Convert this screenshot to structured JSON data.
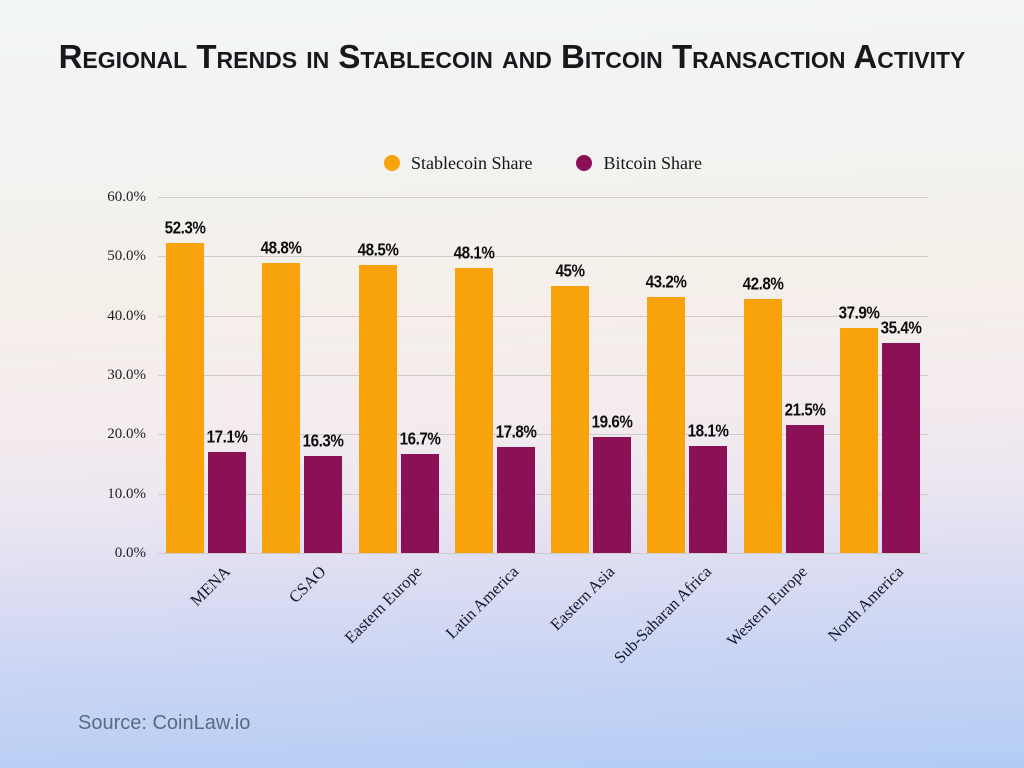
{
  "title": "Regional Trends in Stablecoin and Bitcoin Transaction Activity",
  "source_note": "Source: CoinLaw.io",
  "colors": {
    "stablecoin": "#f8a30b",
    "bitcoin": "#8c1056",
    "gridline": "#cfcbc8",
    "title_text": "#17171c",
    "source_text": "#5d6b80"
  },
  "legend": {
    "items": [
      {
        "label": "Stablecoin Share",
        "color": "#f8a30b"
      },
      {
        "label": "Bitcoin Share",
        "color": "#8c1056"
      }
    ]
  },
  "chart_data": {
    "type": "bar",
    "title": "Regional Trends in Stablecoin and Bitcoin Transaction Activity",
    "categories": [
      "MENA",
      "CSAO",
      "Eastern Europe",
      "Latin America",
      "Eastern Asia",
      "Sub-Saharan Africa",
      "Western Europe",
      "North America"
    ],
    "series": [
      {
        "name": "Stablecoin Share",
        "color": "#f8a30b",
        "values": [
          52.3,
          48.8,
          48.5,
          48.1,
          45,
          43.2,
          42.8,
          37.9
        ],
        "labels": [
          "52.3%",
          "48.8%",
          "48.5%",
          "48.1%",
          "45%",
          "43.2%",
          "42.8%",
          "37.9%"
        ]
      },
      {
        "name": "Bitcoin Share",
        "color": "#8c1056",
        "values": [
          17.1,
          16.3,
          16.7,
          17.8,
          19.6,
          18.1,
          21.5,
          35.4
        ],
        "labels": [
          "17.1%",
          "16.3%",
          "16.7%",
          "17.8%",
          "19.6%",
          "18.1%",
          "21.5%",
          "35.4%"
        ]
      }
    ],
    "xlabel": "",
    "ylabel": "",
    "ylim": [
      0,
      60
    ],
    "ytick_interval": 10,
    "ytick_labels": [
      "0.0%",
      "10.0%",
      "20.0%",
      "30.0%",
      "40.0%",
      "50.0%",
      "60.0%"
    ],
    "grid": true,
    "legend_position": "top-center",
    "bar_value_labels": true
  }
}
